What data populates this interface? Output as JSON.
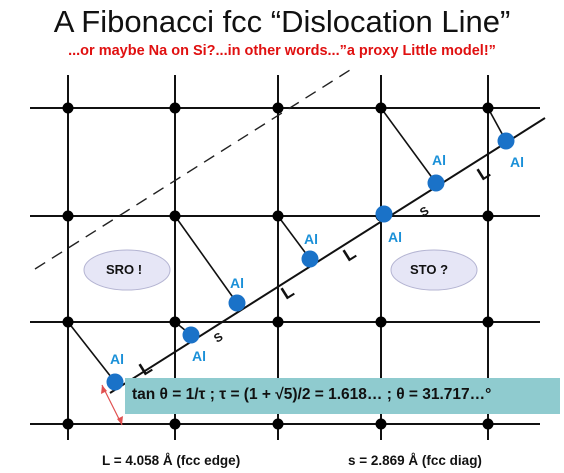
{
  "title": "A Fibonacci fcc “Dislocation Line”",
  "subtitle": "...or maybe Na on Si?...in other words...”a proxy Little model!”",
  "regions": {
    "sro_label": "SRO !",
    "sto_label": "STO ?"
  },
  "atom_label": "Al",
  "segment_labels": {
    "long": "L",
    "short": "S"
  },
  "formula": "tan θ = 1/τ ; τ = (1 + √5)/2 = 1.618… ; θ = 31.717…°",
  "footer": {
    "left": "L = 4.058 Å (fcc edge)",
    "right": "s = 2.869 Å (fcc diag)"
  },
  "colors": {
    "subtitle": "#e01010",
    "atom": "#1a72c8",
    "atom_label": "#1a90d8",
    "oval_fill": "#e6e6f6",
    "formula_box": "#8fcbcf",
    "angle_arrow": "#e05050"
  }
}
